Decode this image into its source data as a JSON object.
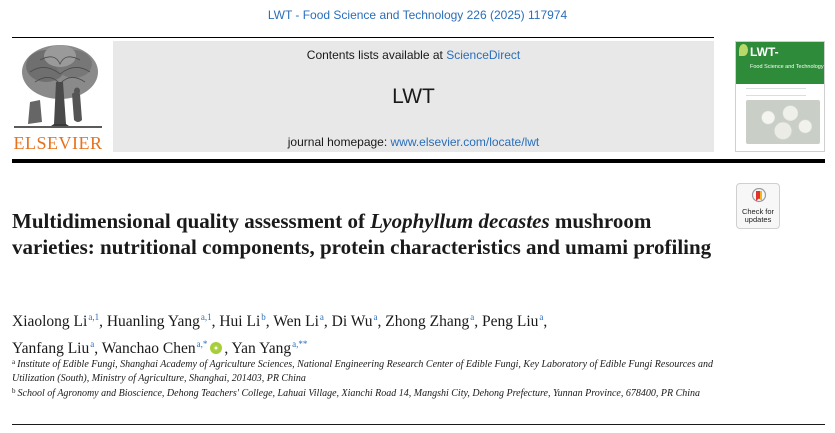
{
  "header": {
    "citation": "LWT - Food Science and Technology 226 (2025) 117974",
    "contents_prefix": "Contents lists available at ",
    "contents_link": "ScienceDirect",
    "journal_name": "LWT",
    "homepage_prefix": "journal homepage: ",
    "homepage_link": "www.elsevier.com/locate/lwt",
    "publisher": "ELSEVIER"
  },
  "cover": {
    "title": "LWT-",
    "subtitle": "Food Science and Technology"
  },
  "check_updates": {
    "line1": "Check for",
    "line2": "updates"
  },
  "article": {
    "title_part1": "Multidimensional quality assessment of ",
    "title_italic": "Lyophyllum decastes",
    "title_part2": " mushroom varieties: nutritional components, protein characteristics and umami profiling"
  },
  "authors": [
    {
      "name": "Xiaolong Li",
      "sup": "a,1"
    },
    {
      "name": "Huanling Yang",
      "sup": "a,1"
    },
    {
      "name": "Hui Li",
      "sup": "b"
    },
    {
      "name": "Wen Li",
      "sup": "a"
    },
    {
      "name": "Di Wu",
      "sup": "a"
    },
    {
      "name": "Zhong Zhang",
      "sup": "a"
    },
    {
      "name": "Peng Liu",
      "sup": "a"
    },
    {
      "name": "Yanfang Liu",
      "sup": "a"
    },
    {
      "name": "Wanchao Chen",
      "sup": "a,*"
    },
    {
      "name": "Yan Yang",
      "sup": "a,**"
    }
  ],
  "affiliations": [
    {
      "marker": "a",
      "text": "Institute of Edible Fungi, Shanghai Academy of Agriculture Sciences, National Engineering Research Center of Edible Fungi, Key Laboratory of Edible Fungi Resources and Utilization (South), Ministry of Agriculture, Shanghai, 201403, PR China"
    },
    {
      "marker": "b",
      "text": "School of Agronomy and Bioscience, Dehong Teachers' College, Lahuai Village, Xianchi Road 14, Mangshi City, Dehong Prefecture, Yunnan Province, 678400, PR China"
    }
  ],
  "colors": {
    "link": "#2a6ebb",
    "elsevier_orange": "#e9711c",
    "cover_green": "#2e8b3a",
    "orcid_green": "#a6ce39"
  }
}
